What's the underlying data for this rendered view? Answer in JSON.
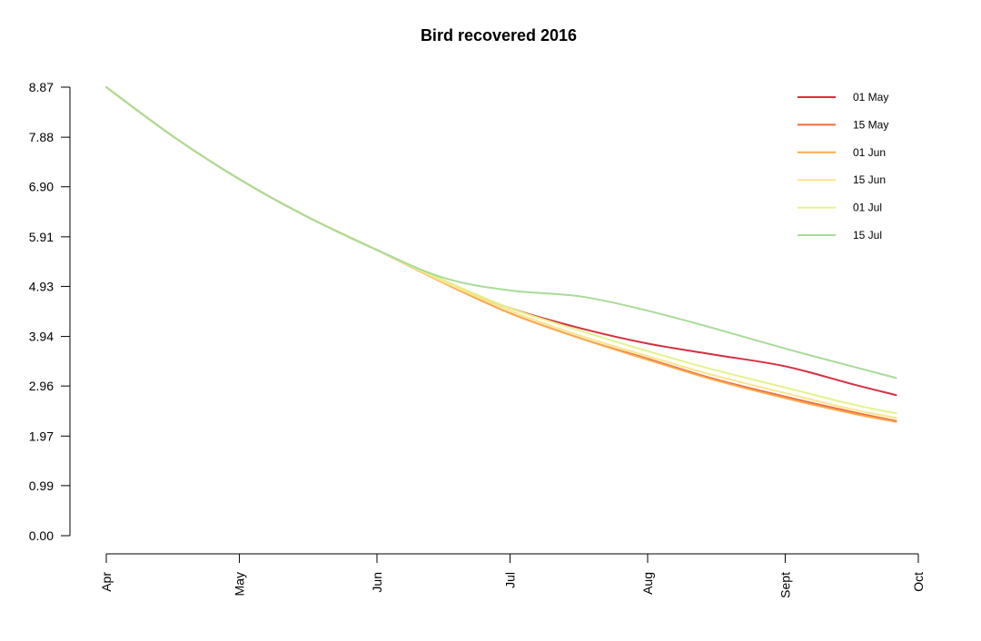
{
  "chart_data": {
    "type": "line",
    "title": "Bird recovered 2016",
    "xlabel": "",
    "ylabel": "",
    "x_ticks": [
      "Apr",
      "May",
      "Jun",
      "Jul",
      "Aug",
      "Sept",
      "Oct"
    ],
    "x_tick_values": [
      0,
      30,
      61,
      91,
      122,
      153,
      183
    ],
    "xlim": [
      0,
      183
    ],
    "y_ticks": [
      "0.00",
      "0.99",
      "1.97",
      "2.96",
      "3.94",
      "4.93",
      "5.91",
      "6.90",
      "7.88",
      "8.87"
    ],
    "ylim": [
      0,
      8.87
    ],
    "grid": false,
    "legend_position": "top-right",
    "x": [
      0,
      15,
      30,
      45,
      61,
      76,
      91,
      107,
      122,
      137,
      153,
      168,
      178
    ],
    "series": [
      {
        "name": "01 May",
        "color": "#d62f3f",
        "values": [
          8.87,
          7.9,
          7.05,
          6.32,
          5.65,
          5.05,
          4.5,
          4.1,
          3.8,
          3.58,
          3.35,
          3.0,
          2.78
        ]
      },
      {
        "name": "15 May",
        "color": "#f06a3f",
        "values": [
          8.87,
          7.9,
          7.05,
          6.32,
          5.65,
          5.0,
          4.4,
          3.9,
          3.5,
          3.1,
          2.75,
          2.45,
          2.27
        ]
      },
      {
        "name": "01 Jun",
        "color": "#f8a94d",
        "values": [
          8.87,
          7.9,
          7.05,
          6.32,
          5.65,
          5.0,
          4.4,
          3.9,
          3.48,
          3.08,
          2.72,
          2.42,
          2.25
        ]
      },
      {
        "name": "15 Jun",
        "color": "#fbe58d",
        "values": [
          8.87,
          7.9,
          7.05,
          6.32,
          5.65,
          5.02,
          4.45,
          3.95,
          3.55,
          3.17,
          2.82,
          2.5,
          2.33
        ]
      },
      {
        "name": "01 Jul",
        "color": "#e4f28b",
        "values": [
          8.87,
          7.9,
          7.05,
          6.32,
          5.65,
          5.05,
          4.5,
          4.05,
          3.65,
          3.28,
          2.93,
          2.6,
          2.42
        ]
      },
      {
        "name": "15 Jul",
        "color": "#a7dc97",
        "values": [
          8.87,
          7.9,
          7.05,
          6.32,
          5.65,
          5.1,
          4.85,
          4.73,
          4.45,
          4.1,
          3.7,
          3.35,
          3.12
        ]
      }
    ]
  }
}
